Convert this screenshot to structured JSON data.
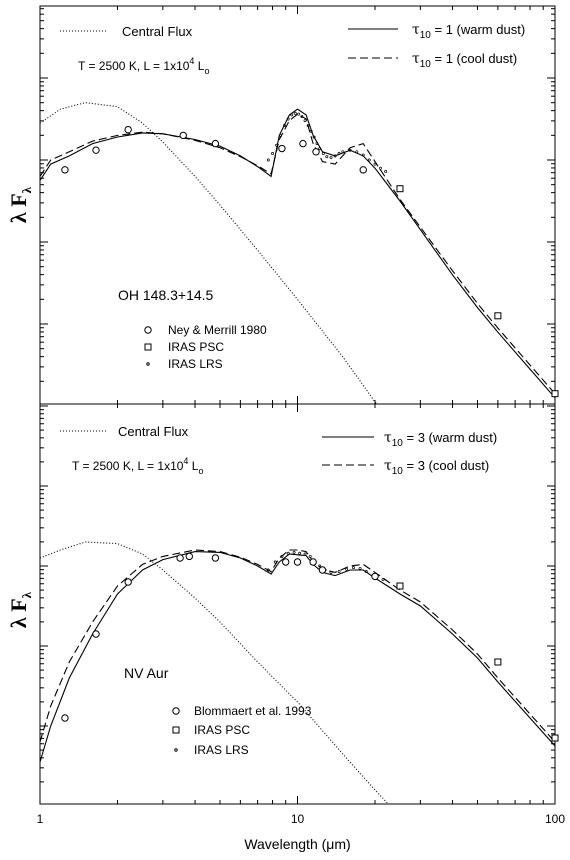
{
  "chart_data": [
    {
      "type": "line",
      "object": "OH 148.3+14.5",
      "ylabel_main": "λ F",
      "ylabel_sub": "λ",
      "xscale": "log",
      "xlim": [
        1,
        100
      ],
      "yscale": "log",
      "legend_top_left": {
        "label": "Central Flux"
      },
      "params": {
        "temp": "T = 2500 K,  L = 1x10",
        "exp": "4",
        "unit": " L",
        "unit_sub": "o"
      },
      "legend_top_right": [
        {
          "tau": "τ",
          "sub": "10",
          "text": " = 1  (warm dust)"
        },
        {
          "tau": "τ",
          "sub": "10",
          "text": " = 1  (cool dust)"
        }
      ],
      "legend_markers": [
        "Ney & Merrill 1980",
        "IRAS PSC",
        "IRAS LRS"
      ],
      "central_flux": {
        "x": [
          1.0,
          1.2,
          1.5,
          2.0,
          2.5,
          3.0,
          4.0,
          5.0,
          7.0,
          10.0,
          15.0,
          20.0,
          25.0
        ],
        "y": [
          0.45,
          0.62,
          0.7,
          0.65,
          0.45,
          0.22,
          -0.2,
          -0.55,
          -1.1,
          -1.7,
          -2.4,
          -2.95,
          -3.35
        ]
      },
      "warm_dust": {
        "x": [
          1.0,
          1.1,
          1.3,
          1.6,
          2.0,
          2.5,
          3.0,
          4.0,
          5.0,
          6.0,
          7.0,
          7.9,
          8.5,
          9.3,
          10.0,
          10.8,
          11.5,
          12.5,
          14.0,
          16.0,
          18.0,
          20.0,
          25.0,
          30.0,
          40.0,
          50.0,
          60.0,
          80.0,
          100.0
        ],
        "y": [
          -0.25,
          -0.05,
          0.05,
          0.2,
          0.28,
          0.33,
          0.32,
          0.25,
          0.17,
          0.05,
          -0.08,
          -0.2,
          0.3,
          0.55,
          0.62,
          0.55,
          0.3,
          0.1,
          0.05,
          0.12,
          0.05,
          -0.1,
          -0.5,
          -0.85,
          -1.4,
          -1.8,
          -2.1,
          -2.55,
          -2.9
        ]
      },
      "cool_dust": {
        "x": [
          1.0,
          1.1,
          1.3,
          1.6,
          2.0,
          2.5,
          3.0,
          4.0,
          5.0,
          6.0,
          7.0,
          7.9,
          8.5,
          9.3,
          10.0,
          10.8,
          11.5,
          12.5,
          14.0,
          16.0,
          18.0,
          20.0,
          25.0,
          30.0,
          40.0,
          50.0,
          60.0,
          80.0,
          100.0
        ],
        "y": [
          -0.2,
          0.0,
          0.1,
          0.23,
          0.3,
          0.34,
          0.32,
          0.24,
          0.15,
          0.04,
          -0.07,
          -0.17,
          0.25,
          0.48,
          0.56,
          0.5,
          0.2,
          -0.02,
          -0.05,
          0.15,
          0.2,
          -0.02,
          -0.48,
          -0.82,
          -1.35,
          -1.75,
          -2.05,
          -2.5,
          -2.85
        ]
      },
      "lrs": {
        "x": [
          7.7,
          8.0,
          8.3,
          8.6,
          8.9,
          9.2,
          9.5,
          9.8,
          10.1,
          10.4,
          10.7,
          11.0,
          11.3,
          11.6,
          11.9,
          12.2,
          12.6,
          13.0,
          13.5,
          14.0,
          14.5,
          15.0,
          16.0,
          17.0,
          18.0,
          19.0,
          20.0,
          21.0,
          22.0
        ],
        "y": [
          0.0,
          0.08,
          0.18,
          0.3,
          0.42,
          0.5,
          0.55,
          0.57,
          0.56,
          0.53,
          0.48,
          0.42,
          0.35,
          0.28,
          0.2,
          0.14,
          0.08,
          0.04,
          0.03,
          0.05,
          0.08,
          0.1,
          0.12,
          0.1,
          0.06,
          0.0,
          -0.05,
          -0.1,
          -0.14
        ]
      },
      "nm": {
        "x": [
          1.25,
          1.65,
          2.2,
          3.6,
          4.8,
          8.7,
          10.5,
          11.8,
          18.0
        ],
        "y": [
          -0.12,
          0.12,
          0.37,
          0.3,
          0.2,
          0.14,
          0.2,
          0.1,
          -0.12
        ]
      },
      "psc": {
        "x": [
          25.0,
          60.0,
          100.0
        ],
        "y": [
          -0.35,
          -1.9,
          -2.85
        ]
      }
    },
    {
      "type": "line",
      "object": "NV Aur",
      "ylabel_main": "λ F",
      "ylabel_sub": "λ",
      "xscale": "log",
      "xlim": [
        1,
        100
      ],
      "yscale": "log",
      "xlabel": "Wavelength (μm)",
      "xticks": [
        "1",
        "10",
        "100"
      ],
      "legend_top_left": {
        "label": "Central Flux"
      },
      "params": {
        "temp": "T = 2500 K,  L = 1x10",
        "exp": "4",
        "unit": " L",
        "unit_sub": "o"
      },
      "legend_top_right": [
        {
          "tau": "τ",
          "sub": "10",
          "text": " = 3  (warm dust)"
        },
        {
          "tau": "τ",
          "sub": "10",
          "text": " = 3  (cool dust)"
        }
      ],
      "legend_markers": [
        "Blommaert et al. 1993",
        "IRAS PSC",
        "IRAS LRS"
      ],
      "central_flux": {
        "x": [
          1.0,
          1.2,
          1.5,
          2.0,
          2.5,
          3.0,
          4.0,
          5.0,
          7.0,
          10.0,
          15.0,
          20.0,
          30.0,
          45.0
        ],
        "y": [
          0.1,
          0.2,
          0.3,
          0.28,
          0.15,
          -0.05,
          -0.4,
          -0.7,
          -1.2,
          -1.7,
          -2.35,
          -2.8,
          -3.4,
          -4.0
        ]
      },
      "warm_dust": {
        "x": [
          1.0,
          1.1,
          1.3,
          1.6,
          2.0,
          2.5,
          3.0,
          4.0,
          5.0,
          6.0,
          7.0,
          7.9,
          8.5,
          9.3,
          10.0,
          10.8,
          11.5,
          12.5,
          14.0,
          16.0,
          18.0,
          20.0,
          25.0,
          30.0,
          40.0,
          50.0,
          60.0,
          80.0,
          100.0
        ],
        "y": [
          -2.45,
          -2.0,
          -1.4,
          -0.85,
          -0.35,
          -0.05,
          0.08,
          0.18,
          0.17,
          0.1,
          0.0,
          -0.1,
          0.05,
          0.15,
          0.14,
          0.13,
          0.02,
          -0.08,
          -0.12,
          -0.05,
          -0.05,
          -0.15,
          -0.35,
          -0.5,
          -0.85,
          -1.15,
          -1.45,
          -1.9,
          -2.25
        ]
      },
      "cool_dust": {
        "x": [
          1.0,
          1.1,
          1.3,
          1.6,
          2.0,
          2.5,
          3.0,
          4.0,
          5.0,
          6.0,
          7.0,
          7.9,
          8.5,
          9.3,
          10.0,
          10.8,
          11.5,
          12.5,
          14.0,
          16.0,
          18.0,
          20.0,
          25.0,
          30.0,
          40.0,
          50.0,
          60.0,
          80.0,
          100.0
        ],
        "y": [
          -2.2,
          -1.75,
          -1.2,
          -0.7,
          -0.25,
          0.02,
          0.12,
          0.2,
          0.18,
          0.11,
          0.02,
          -0.07,
          0.1,
          0.2,
          0.2,
          0.18,
          0.06,
          -0.04,
          -0.08,
          0.0,
          0.02,
          -0.08,
          -0.3,
          -0.45,
          -0.8,
          -1.1,
          -1.4,
          -1.85,
          -2.2
        ]
      },
      "lrs": {
        "x": [
          7.7,
          8.2,
          8.7,
          9.2,
          9.7,
          10.2,
          10.7,
          11.2,
          11.7,
          12.2,
          12.8,
          13.5,
          14.5,
          15.5,
          16.5,
          17.5,
          18.5,
          20.0,
          21.5
        ],
        "y": [
          -0.05,
          0.05,
          0.12,
          0.16,
          0.17,
          0.16,
          0.15,
          0.12,
          0.06,
          0.0,
          -0.05,
          -0.08,
          -0.07,
          -0.04,
          -0.02,
          -0.03,
          -0.07,
          -0.12,
          -0.17
        ]
      },
      "bl": {
        "x": [
          1.25,
          1.65,
          2.2,
          3.5,
          3.8,
          4.8,
          9.0,
          10.0,
          11.5,
          12.5,
          20.0
        ],
        "y": [
          -1.9,
          -0.85,
          -0.2,
          0.1,
          0.12,
          0.1,
          0.05,
          0.05,
          0.05,
          -0.05,
          -0.13
        ]
      },
      "psc": {
        "x": [
          25.0,
          60.0,
          100.0
        ],
        "y": [
          -0.25,
          -1.2,
          -2.15
        ]
      }
    }
  ]
}
